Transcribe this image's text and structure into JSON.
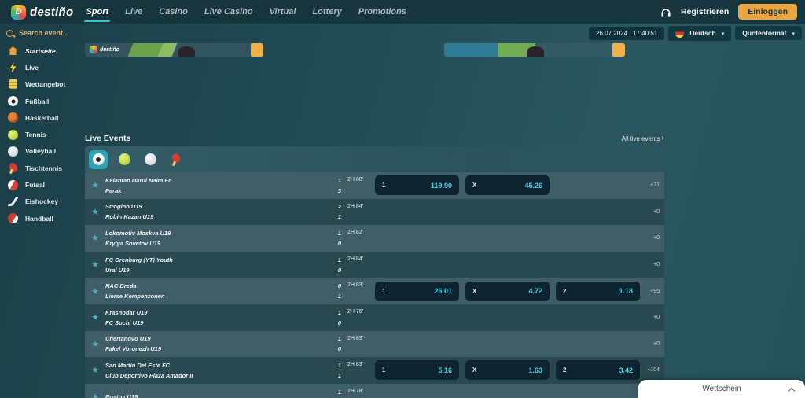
{
  "colors": {
    "accent_teal": "#2fc3d3",
    "accent_orange": "#eca43e",
    "odds_cyan": "#3fd2e4"
  },
  "header": {
    "logo_text": "destiño",
    "logo_letter": "D",
    "nav": [
      {
        "label": "Sport",
        "active": true
      },
      {
        "label": "Live",
        "active": false
      },
      {
        "label": "Casino",
        "active": false
      },
      {
        "label": "Live Casino",
        "active": false
      },
      {
        "label": "Virtual",
        "active": false
      },
      {
        "label": "Lottery",
        "active": false
      },
      {
        "label": "Promotions",
        "active": false
      }
    ],
    "register_label": "Registrieren",
    "login_label": "Einloggen"
  },
  "subheader": {
    "search_placeholder": "Search event...",
    "date": "26.07.2024",
    "time": "17:40:51",
    "language": "Deutsch",
    "odds_format_label": "Quotenformat"
  },
  "sidebar": {
    "items": [
      {
        "label": "Startseite",
        "icon": "home-icon",
        "active": true
      },
      {
        "label": "Live",
        "icon": "lightning-icon",
        "active": false
      },
      {
        "label": "Wettangebot",
        "icon": "list-icon",
        "active": false
      },
      {
        "label": "Fußball",
        "icon": "soccer",
        "active": false
      },
      {
        "label": "Basketball",
        "icon": "basketball",
        "active": false
      },
      {
        "label": "Tennis",
        "icon": "tennis",
        "active": false
      },
      {
        "label": "Volleyball",
        "icon": "volleyball",
        "active": false
      },
      {
        "label": "Tischtennis",
        "icon": "tabletennis",
        "active": false
      },
      {
        "label": "Futsal",
        "icon": "futsal",
        "active": false
      },
      {
        "label": "Eishockey",
        "icon": "hockey",
        "active": false
      },
      {
        "label": "Handball",
        "icon": "handball",
        "active": false
      }
    ]
  },
  "banners": {
    "left_logo_text": "destiño"
  },
  "live_events": {
    "title": "Live Events",
    "all_link": "All live events",
    "sport_tabs": [
      {
        "icon": "soccer",
        "active": true
      },
      {
        "icon": "tennis",
        "active": false
      },
      {
        "icon": "volleyball",
        "active": false
      },
      {
        "icon": "tabletennis",
        "active": false
      }
    ],
    "rows": [
      {
        "home": "Kelantan Darul Naim Fc",
        "away": "Perak",
        "score_home": "1",
        "score_away": "3",
        "time": "2H 88'",
        "odds": [
          {
            "label": "1",
            "value": "119.90"
          },
          {
            "label": "X",
            "value": "45.26"
          }
        ],
        "more": "+71"
      },
      {
        "home": "Strogino U19",
        "away": "Rubin Kazan U19",
        "score_home": "2",
        "score_away": "1",
        "time": "2H 84'",
        "odds": [],
        "more": "+0"
      },
      {
        "home": "Lokomotiv Moskva U19",
        "away": "Krylya Sovetov U19",
        "score_home": "1",
        "score_away": "0",
        "time": "2H 82'",
        "odds": [],
        "more": "+0"
      },
      {
        "home": "FC Orenburg (YT) Youth",
        "away": "Ural U19",
        "score_home": "1",
        "score_away": "0",
        "time": "2H 84'",
        "odds": [],
        "more": "+0"
      },
      {
        "home": "NAC Breda",
        "away": "Lierse Kempenzonen",
        "score_home": "0",
        "score_away": "1",
        "time": "2H 83'",
        "odds": [
          {
            "label": "1",
            "value": "26.01"
          },
          {
            "label": "X",
            "value": "4.72"
          },
          {
            "label": "2",
            "value": "1.18"
          }
        ],
        "more": "+95"
      },
      {
        "home": "Krasnodar U19",
        "away": "FC Sochi U19",
        "score_home": "1",
        "score_away": "0",
        "time": "2H 76'",
        "odds": [],
        "more": "+0"
      },
      {
        "home": "Chertanovo U19",
        "away": "Fakel Voronezh U19",
        "score_home": "1",
        "score_away": "0",
        "time": "2H 83'",
        "odds": [],
        "more": "+0"
      },
      {
        "home": "San Martín Del Este FC",
        "away": "Club Deportivo Plaza Amador II",
        "score_home": "1",
        "score_away": "1",
        "time": "2H 83'",
        "odds": [
          {
            "label": "1",
            "value": "5.16"
          },
          {
            "label": "X",
            "value": "1.63"
          },
          {
            "label": "2",
            "value": "3.42"
          }
        ],
        "more": "+104"
      },
      {
        "home": "Rostov U19",
        "away": "",
        "score_home": "1",
        "score_away": "",
        "time": "2H 78'",
        "odds": [],
        "more": ""
      }
    ]
  },
  "betslip": {
    "title": "Wettschein"
  }
}
